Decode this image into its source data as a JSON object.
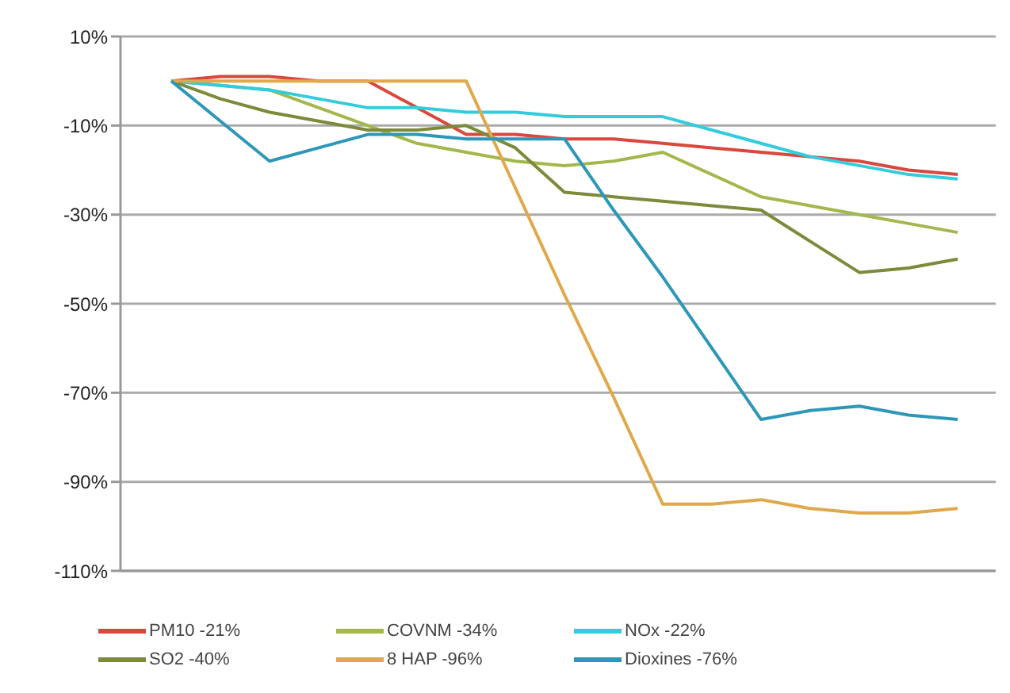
{
  "chart_data": {
    "type": "line",
    "categories": [
      null,
      null,
      null,
      null,
      null,
      null,
      null,
      null,
      null,
      null,
      null,
      null,
      null,
      null,
      null,
      null,
      null
    ],
    "series": [
      {
        "name": "PM10 -21%",
        "color": "#d9473d",
        "values": [
          0,
          1,
          1,
          0,
          0,
          -6,
          -12,
          -12,
          -13,
          -13,
          -14,
          -15,
          -16,
          -17,
          -18,
          -20,
          -21
        ]
      },
      {
        "name": "COVNM -34%",
        "color": "#a3b84c",
        "values": [
          0,
          -1,
          -2,
          -6,
          -10,
          -14,
          -16,
          -18,
          -19,
          -18,
          -16,
          -21,
          -26,
          -28,
          -30,
          -32,
          -34
        ]
      },
      {
        "name": "NOx -22%",
        "color": "#33ccdd",
        "values": [
          0,
          -1,
          -2,
          -4,
          -6,
          -6,
          -7,
          -7,
          -8,
          -8,
          -8,
          -11,
          -14,
          -17,
          -19,
          -21,
          -22
        ]
      },
      {
        "name": "SO2  -40%",
        "color": "#7d8a3a",
        "values": [
          0,
          -4,
          -7,
          -9,
          -11,
          -11,
          -10,
          -15,
          -25,
          -26,
          -27,
          -28,
          -29,
          -36,
          -43,
          -42,
          -40
        ]
      },
      {
        "name": "8 HAP -96%",
        "color": "#e0a84a",
        "values": [
          0,
          0,
          0,
          0,
          0,
          0,
          0,
          -24,
          -48,
          -71,
          -95,
          -95,
          -94,
          -96,
          -97,
          -97,
          -96
        ]
      },
      {
        "name": "Dioxines -76%",
        "color": "#2e97b8",
        "values": [
          0,
          -9,
          -18,
          -15,
          -12,
          -12,
          -13,
          -13,
          -13,
          -29,
          -44,
          -60,
          -76,
          -74,
          -73,
          -75,
          -76
        ]
      }
    ],
    "ylim": [
      -110,
      10
    ],
    "yticks": [
      {
        "value": 10,
        "label": "10%"
      },
      {
        "value": -10,
        "label": "-10%"
      },
      {
        "value": -30,
        "label": "-30%"
      },
      {
        "value": -50,
        "label": "-50%"
      },
      {
        "value": -70,
        "label": "-70%"
      },
      {
        "value": -90,
        "label": "-90%"
      },
      {
        "value": -110,
        "label": "-110%"
      }
    ],
    "grid": "y",
    "legend": "bottom",
    "marker": "none",
    "line_style": "solid"
  }
}
